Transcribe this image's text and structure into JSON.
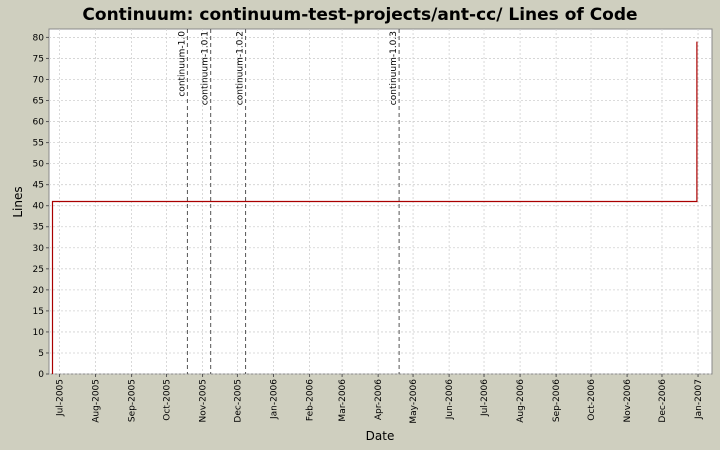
{
  "chart_data": {
    "type": "line",
    "title": "Continuum: continuum-test-projects/ant-cc/ Lines of Code",
    "xlabel": "Date",
    "ylabel": "Lines",
    "ylim": [
      0,
      82
    ],
    "y_ticks": [
      0,
      5,
      10,
      15,
      20,
      25,
      30,
      35,
      40,
      45,
      50,
      55,
      60,
      65,
      70,
      75,
      80
    ],
    "x_ticks": [
      {
        "label": "Jul-2005",
        "date": "2005-07-01"
      },
      {
        "label": "Aug-2005",
        "date": "2005-08-01"
      },
      {
        "label": "Sep-2005",
        "date": "2005-09-01"
      },
      {
        "label": "Oct-2005",
        "date": "2005-10-01"
      },
      {
        "label": "Nov-2005",
        "date": "2005-11-01"
      },
      {
        "label": "Dec-2005",
        "date": "2005-12-01"
      },
      {
        "label": "Jan-2006",
        "date": "2006-01-01"
      },
      {
        "label": "Feb-2006",
        "date": "2006-02-01"
      },
      {
        "label": "Mar-2006",
        "date": "2006-03-01"
      },
      {
        "label": "Apr-2006",
        "date": "2006-04-01"
      },
      {
        "label": "May-2006",
        "date": "2006-05-01"
      },
      {
        "label": "Jun-2006",
        "date": "2006-06-01"
      },
      {
        "label": "Jul-2006",
        "date": "2006-07-01"
      },
      {
        "label": "Aug-2006",
        "date": "2006-08-01"
      },
      {
        "label": "Sep-2006",
        "date": "2006-09-01"
      },
      {
        "label": "Oct-2006",
        "date": "2006-10-01"
      },
      {
        "label": "Nov-2006",
        "date": "2006-11-01"
      },
      {
        "label": "Dec-2006",
        "date": "2006-12-01"
      },
      {
        "label": "Jan-2007",
        "date": "2007-01-01"
      }
    ],
    "x_range": [
      "2005-06-22",
      "2007-01-13"
    ],
    "series": [
      {
        "color": "#aa0000",
        "points": [
          {
            "x": "2005-06-25",
            "y": 0
          },
          {
            "x": "2005-06-25",
            "y": 41
          },
          {
            "x": "2006-12-31",
            "y": 41
          },
          {
            "x": "2006-12-31",
            "y": 79
          }
        ]
      }
    ],
    "markers": [
      {
        "label": "continuum-1.0",
        "x": "2005-10-19"
      },
      {
        "label": "continuum-1.0.1",
        "x": "2005-11-08"
      },
      {
        "label": "continuum-1.0.2",
        "x": "2005-12-08"
      },
      {
        "label": "continuum-1.0.3",
        "x": "2006-04-19"
      }
    ],
    "grid": true,
    "colors": {
      "background": "#cfcfbf",
      "plot": "#ffffff",
      "grid": "#d0d0d0",
      "line": "#aa0000",
      "marker": "#555555"
    }
  }
}
